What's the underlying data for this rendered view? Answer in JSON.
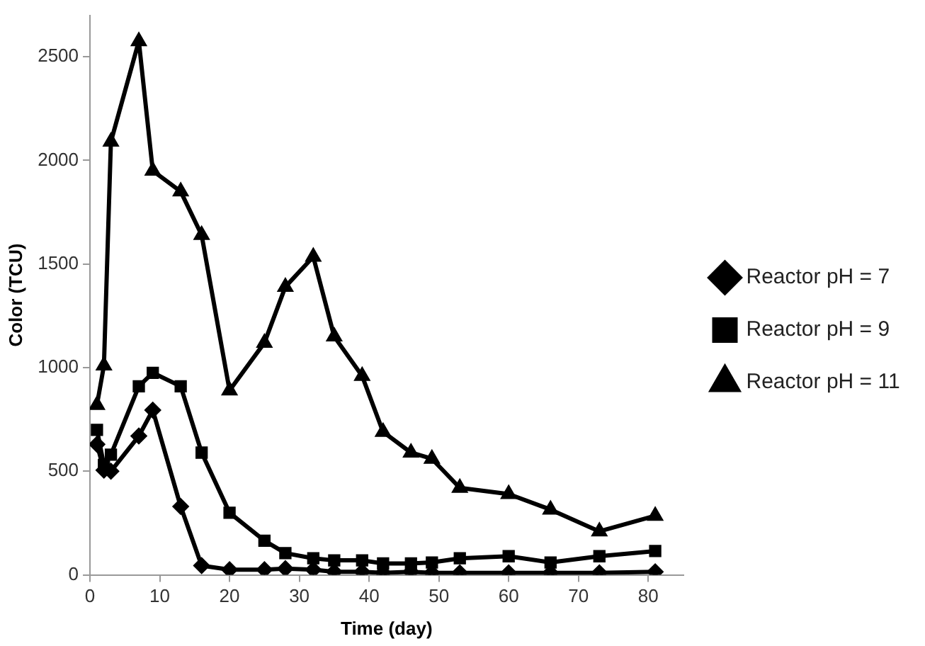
{
  "chart_data": {
    "type": "line",
    "xlabel": "Time (day)",
    "ylabel": "Color (TCU)",
    "x": [
      1,
      2,
      3,
      7,
      9,
      13,
      16,
      20,
      25,
      28,
      32,
      35,
      39,
      42,
      46,
      49,
      53,
      60,
      66,
      73,
      81
    ],
    "series": [
      {
        "name": "Reactor pH = 7",
        "color": "#000000",
        "marker": "diamond",
        "values": [
          630,
          505,
          500,
          670,
          795,
          330,
          45,
          25,
          25,
          30,
          25,
          15,
          15,
          10,
          15,
          10,
          10,
          10,
          10,
          10,
          15
        ]
      },
      {
        "name": "Reactor pH = 9",
        "color": "#000000",
        "marker": "square",
        "values": [
          700,
          530,
          580,
          910,
          975,
          910,
          590,
          300,
          165,
          105,
          80,
          70,
          70,
          55,
          55,
          60,
          80,
          90,
          60,
          90,
          115
        ]
      },
      {
        "name": "Reactor pH = 11",
        "color": "#000000",
        "marker": "triangle",
        "values": [
          820,
          1010,
          2090,
          2575,
          1950,
          1850,
          1640,
          890,
          1120,
          1390,
          1535,
          1150,
          960,
          690,
          590,
          560,
          420,
          390,
          315,
          210,
          285
        ]
      }
    ],
    "xlim": [
      0,
      85
    ],
    "xticks": [
      0,
      10,
      20,
      30,
      40,
      50,
      60,
      70,
      80
    ],
    "ylim": [
      0,
      2700
    ],
    "yticks": [
      0,
      500,
      1000,
      1500,
      2000,
      2500
    ],
    "grid": false,
    "legend": "right",
    "line_style": "solid"
  }
}
